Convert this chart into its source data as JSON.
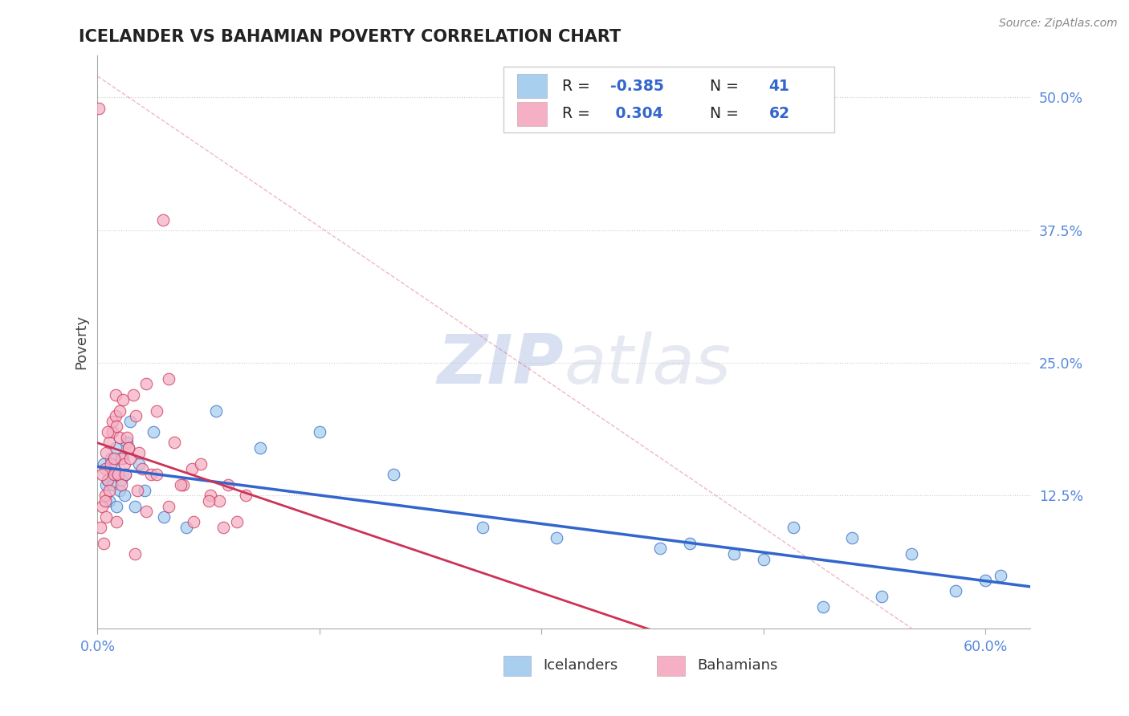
{
  "title": "ICELANDER VS BAHAMIAN POVERTY CORRELATION CHART",
  "source": "Source: ZipAtlas.com",
  "ylabel": "Poverty",
  "yticks": [
    0.0,
    0.125,
    0.25,
    0.375,
    0.5
  ],
  "ytick_labels": [
    "",
    "12.5%",
    "25.0%",
    "37.5%",
    "50.0%"
  ],
  "xtick_labels": [
    "0.0%",
    "",
    "",
    "",
    "60.0%"
  ],
  "xlim": [
    0.0,
    0.63
  ],
  "ylim": [
    0.0,
    0.54
  ],
  "legend_R_blue": "-0.385",
  "legend_N_blue": "41",
  "legend_R_pink": "0.304",
  "legend_N_pink": "62",
  "watermark_zip": "ZIP",
  "watermark_atlas": "atlas",
  "blue_scatter_color": "#A8CFEE",
  "pink_scatter_color": "#F5B0C5",
  "blue_line_color": "#3366CC",
  "pink_line_color": "#CC3355",
  "axis_tick_color": "#5588DD",
  "grid_color": "#CCCCCC",
  "title_color": "#222222",
  "icelanders_x": [
    0.004,
    0.006,
    0.007,
    0.008,
    0.009,
    0.01,
    0.011,
    0.012,
    0.013,
    0.014,
    0.015,
    0.016,
    0.017,
    0.018,
    0.019,
    0.02,
    0.022,
    0.025,
    0.028,
    0.032,
    0.038,
    0.045,
    0.06,
    0.08,
    0.11,
    0.15,
    0.2,
    0.26,
    0.31,
    0.38,
    0.43,
    0.47,
    0.51,
    0.55,
    0.58,
    0.6,
    0.61,
    0.53,
    0.49,
    0.45,
    0.4
  ],
  "icelanders_y": [
    0.155,
    0.135,
    0.14,
    0.12,
    0.16,
    0.135,
    0.15,
    0.17,
    0.115,
    0.145,
    0.13,
    0.14,
    0.16,
    0.125,
    0.145,
    0.175,
    0.195,
    0.115,
    0.155,
    0.13,
    0.185,
    0.105,
    0.095,
    0.205,
    0.17,
    0.185,
    0.145,
    0.095,
    0.085,
    0.075,
    0.07,
    0.095,
    0.085,
    0.07,
    0.035,
    0.045,
    0.05,
    0.03,
    0.02,
    0.065,
    0.08
  ],
  "bahamians_x": [
    0.001,
    0.002,
    0.003,
    0.004,
    0.005,
    0.005,
    0.006,
    0.006,
    0.007,
    0.008,
    0.008,
    0.009,
    0.01,
    0.01,
    0.011,
    0.012,
    0.012,
    0.013,
    0.014,
    0.015,
    0.015,
    0.016,
    0.017,
    0.018,
    0.019,
    0.02,
    0.021,
    0.022,
    0.024,
    0.026,
    0.028,
    0.03,
    0.033,
    0.036,
    0.04,
    0.044,
    0.048,
    0.052,
    0.058,
    0.064,
    0.07,
    0.076,
    0.082,
    0.088,
    0.094,
    0.1,
    0.003,
    0.007,
    0.011,
    0.016,
    0.021,
    0.027,
    0.033,
    0.04,
    0.048,
    0.056,
    0.065,
    0.075,
    0.085,
    0.005,
    0.013,
    0.025
  ],
  "bahamians_y": [
    0.49,
    0.095,
    0.115,
    0.08,
    0.125,
    0.15,
    0.105,
    0.165,
    0.14,
    0.13,
    0.175,
    0.155,
    0.185,
    0.195,
    0.145,
    0.22,
    0.2,
    0.19,
    0.145,
    0.18,
    0.205,
    0.16,
    0.215,
    0.155,
    0.145,
    0.18,
    0.17,
    0.16,
    0.22,
    0.2,
    0.165,
    0.15,
    0.23,
    0.145,
    0.205,
    0.385,
    0.235,
    0.175,
    0.135,
    0.15,
    0.155,
    0.125,
    0.12,
    0.135,
    0.1,
    0.125,
    0.145,
    0.185,
    0.16,
    0.135,
    0.17,
    0.13,
    0.11,
    0.145,
    0.115,
    0.135,
    0.1,
    0.12,
    0.095,
    0.12,
    0.1,
    0.07
  ]
}
